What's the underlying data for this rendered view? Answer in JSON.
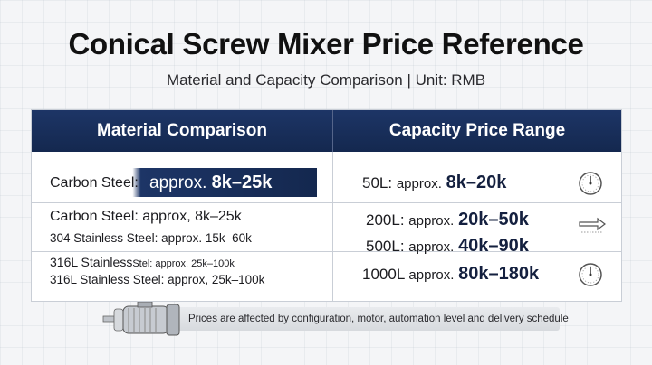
{
  "header": {
    "title": "Conical Screw Mixer Price Reference",
    "subtitle": "Material and Capacity Comparison | Unit: RMB"
  },
  "table": {
    "columns": [
      "Material Comparison",
      "Capacity Price Range"
    ],
    "material": {
      "row1_label": "Carbon Steel:",
      "row1_prefix": "approx.",
      "row1_value": "8k–25k",
      "row2_line1": "Carbon Steel: approx, 8k–25k",
      "row2_line2": "304 Stainless Steel: approx. 15k–60k",
      "row3_line1_a": "316L Stainless",
      "row3_line1_b": "Stel: approx. 25k–100k",
      "row3_line2": "316L Stainless Steel: approx, 25k–100k"
    },
    "capacity": [
      {
        "label": "50L:",
        "prefix": "approx.",
        "value": "8k–20k",
        "icon": "gauge-icon"
      },
      {
        "label": "200L:",
        "prefix": "approx.",
        "value": "20k–50k",
        "icon": "arrow-right-icon"
      },
      {
        "label": "500L:",
        "prefix": "approx.",
        "value": "40k–90k",
        "icon": ""
      },
      {
        "label": "1000L",
        "prefix": "approx.",
        "value": "80k–180k",
        "icon": "gauge-icon"
      }
    ]
  },
  "footer": {
    "note": "Prices are affected by configuration, motor, automation level and delivery schedule",
    "icon": "motor-icon"
  },
  "colors": {
    "header_bg": "#1d3566",
    "accent_text": "#14203f"
  }
}
